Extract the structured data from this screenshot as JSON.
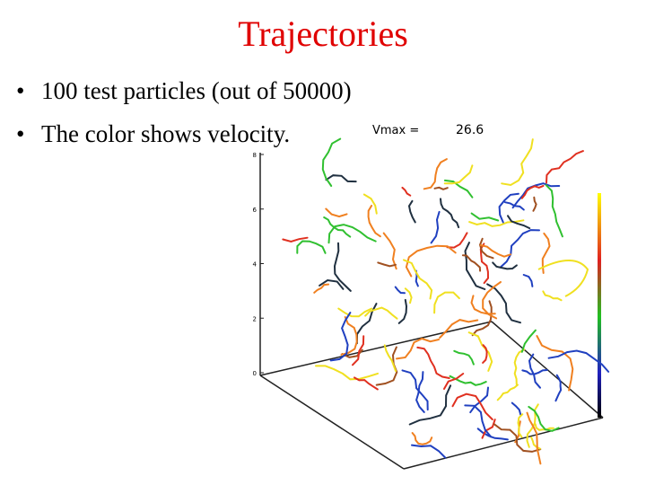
{
  "title": "Trajectories",
  "bullets": [
    "100 test particles (out of 50000)",
    "The color shows velocity."
  ],
  "vmax": {
    "label": "Vmax =",
    "value": "26.6"
  },
  "axis": {
    "ticks": [
      "8",
      "6",
      "4",
      "2",
      "0"
    ]
  }
}
